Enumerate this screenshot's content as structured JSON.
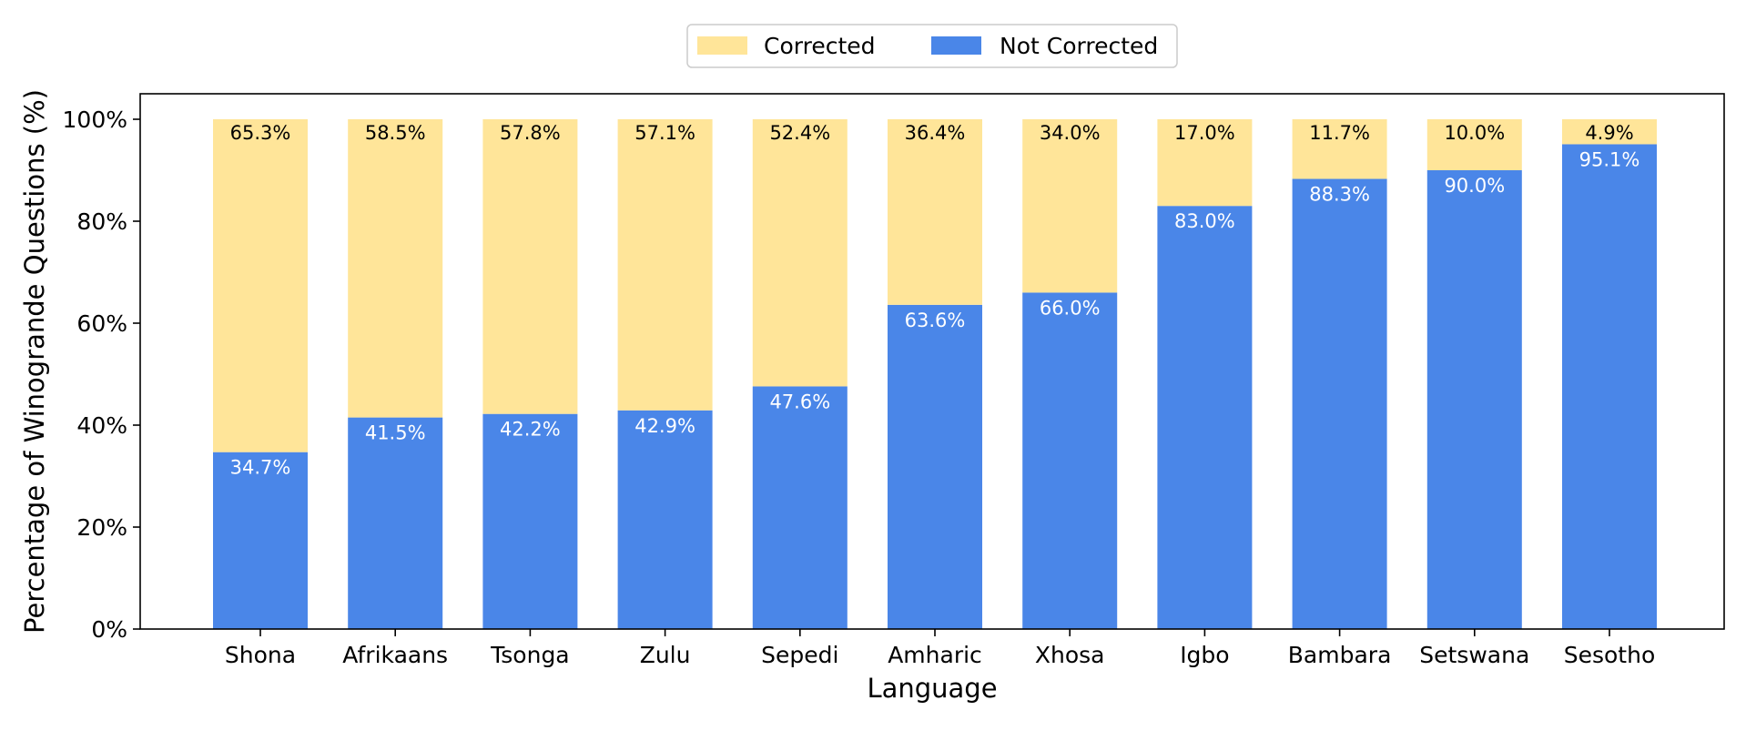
{
  "chart_data": {
    "type": "bar",
    "stacked": true,
    "xlabel": "Language",
    "ylabel": "Percentage of Winogrande Questions (%)",
    "ylim": [
      0,
      105
    ],
    "yticks": [
      0,
      20,
      40,
      60,
      80,
      100
    ],
    "ytick_labels": [
      "0%",
      "20%",
      "40%",
      "60%",
      "80%",
      "100%"
    ],
    "categories": [
      "Shona",
      "Afrikaans",
      "Tsonga",
      "Zulu",
      "Sepedi",
      "Amharic",
      "Xhosa",
      "Igbo",
      "Bambara",
      "Setswana",
      "Sesotho"
    ],
    "series": [
      {
        "name": "Not Corrected",
        "color": "#4a86e8",
        "label_color": "#ffffff",
        "values": [
          34.7,
          41.5,
          42.2,
          42.9,
          47.6,
          63.6,
          66.0,
          83.0,
          88.3,
          90.0,
          95.1
        ],
        "labels": [
          "34.7%",
          "41.5%",
          "42.2%",
          "42.9%",
          "47.6%",
          "63.6%",
          "66.0%",
          "83.0%",
          "88.3%",
          "90.0%",
          "95.1%"
        ]
      },
      {
        "name": "Corrected",
        "color": "#ffe599",
        "label_color": "#000000",
        "values": [
          65.3,
          58.5,
          57.8,
          57.1,
          52.4,
          36.4,
          34.0,
          17.0,
          11.7,
          10.0,
          4.9
        ],
        "labels": [
          "65.3%",
          "58.5%",
          "57.8%",
          "57.1%",
          "52.4%",
          "36.4%",
          "34.0%",
          "17.0%",
          "11.7%",
          "10.0%",
          "4.9%"
        ]
      }
    ],
    "legend": {
      "placement": "top-center",
      "order": [
        "Corrected",
        "Not Corrected"
      ]
    },
    "grid": false
  }
}
